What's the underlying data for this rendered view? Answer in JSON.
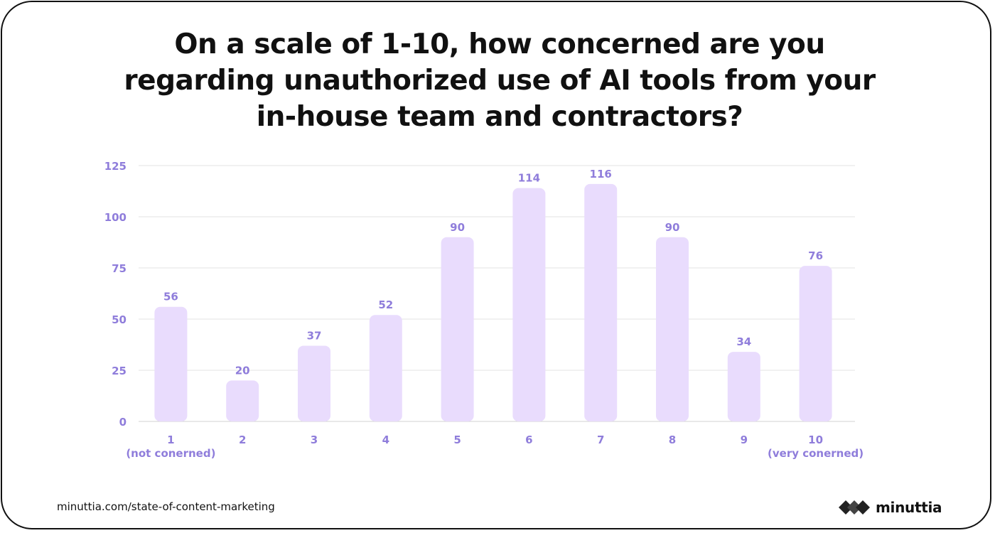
{
  "title": "On a scale of 1-10, how concerned are you regarding unauthorized use of AI tools from your in-house team and contractors?",
  "footer": {
    "link_text": "minuttia.com/state-of-content-marketing",
    "brand_name": "minuttia",
    "brand_icon": "diamond-chain-logo-icon"
  },
  "colors": {
    "bar": "#e9dcfd",
    "label": "#8f7ddb",
    "grid": "#e3e3e3",
    "text": "#111111"
  },
  "chart_data": {
    "type": "bar",
    "categories": [
      "1",
      "2",
      "3",
      "4",
      "5",
      "6",
      "7",
      "8",
      "9",
      "10"
    ],
    "category_sublabels": [
      "(not conerned)",
      "",
      "",
      "",
      "",
      "",
      "",
      "",
      "",
      "(very conerned)"
    ],
    "values": [
      56,
      20,
      37,
      52,
      90,
      114,
      116,
      90,
      34,
      76
    ],
    "yticks": [
      0,
      25,
      50,
      75,
      100,
      125
    ],
    "ylim": [
      0,
      125
    ],
    "xlabel": "",
    "ylabel": "",
    "grid": true,
    "legend": "none"
  }
}
